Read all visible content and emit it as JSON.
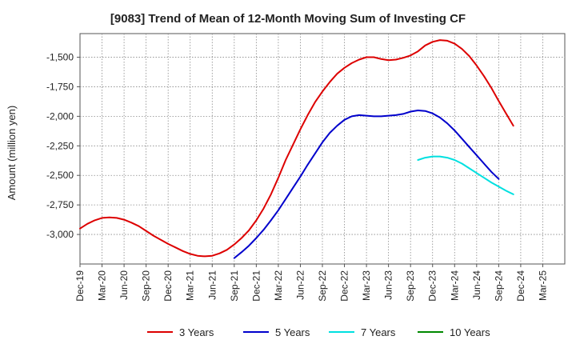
{
  "chart_data": {
    "type": "line",
    "title": "[9083]  Trend of Mean of 12-Month Moving Sum of Investing CF",
    "xlabel": "",
    "ylabel": "Amount (million yen)",
    "x_ticks": [
      "Dec-19",
      "Mar-20",
      "Jun-20",
      "Sep-20",
      "Dec-20",
      "Mar-21",
      "Jun-21",
      "Sep-21",
      "Dec-21",
      "Mar-22",
      "Jun-22",
      "Sep-22",
      "Dec-22",
      "Mar-23",
      "Jun-23",
      "Sep-23",
      "Dec-23",
      "Mar-24",
      "Jun-24",
      "Sep-24",
      "Dec-24",
      "Mar-25"
    ],
    "y_ticks": [
      "-1,500",
      "-1,750",
      "-2,000",
      "-2,250",
      "-2,500",
      "-2,750",
      "-3,000"
    ],
    "y_tick_values": [
      -1500,
      -1750,
      -2000,
      -2250,
      -2500,
      -2750,
      -3000
    ],
    "ylim": [
      -3250,
      -1300
    ],
    "grid": true,
    "legend_position": "bottom",
    "series": [
      {
        "name": "3 Years",
        "color": "#dd0000",
        "x_start": 0,
        "values": [
          -2950,
          -2910,
          -2880,
          -2860,
          -2855,
          -2860,
          -2875,
          -2900,
          -2930,
          -2970,
          -3010,
          -3045,
          -3080,
          -3110,
          -3140,
          -3165,
          -3180,
          -3185,
          -3180,
          -3160,
          -3130,
          -3085,
          -3030,
          -2965,
          -2880,
          -2780,
          -2660,
          -2520,
          -2370,
          -2240,
          -2110,
          -1990,
          -1880,
          -1790,
          -1710,
          -1640,
          -1590,
          -1550,
          -1520,
          -1500,
          -1500,
          -1515,
          -1525,
          -1520,
          -1505,
          -1485,
          -1450,
          -1400,
          -1370,
          -1355,
          -1360,
          -1385,
          -1430,
          -1490,
          -1570,
          -1660,
          -1760,
          -1870,
          -1975,
          -2080
        ]
      },
      {
        "name": "5 Years",
        "color": "#0000cc",
        "x_start": 21,
        "values": [
          -3200,
          -3150,
          -3095,
          -3030,
          -2960,
          -2880,
          -2795,
          -2700,
          -2605,
          -2510,
          -2410,
          -2315,
          -2220,
          -2140,
          -2080,
          -2030,
          -2000,
          -1990,
          -1995,
          -2000,
          -2000,
          -1995,
          -1990,
          -1980,
          -1960,
          -1950,
          -1955,
          -1975,
          -2010,
          -2060,
          -2120,
          -2190,
          -2260,
          -2330,
          -2400,
          -2470,
          -2530
        ]
      },
      {
        "name": "7 Years",
        "color": "#00e0e0",
        "x_start": 46,
        "values": [
          -2370,
          -2350,
          -2340,
          -2340,
          -2350,
          -2370,
          -2400,
          -2440,
          -2480,
          -2520,
          -2560,
          -2595,
          -2630,
          -2660
        ]
      },
      {
        "name": "10 Years",
        "color": "#008800",
        "x_start": 0,
        "values": []
      }
    ]
  }
}
